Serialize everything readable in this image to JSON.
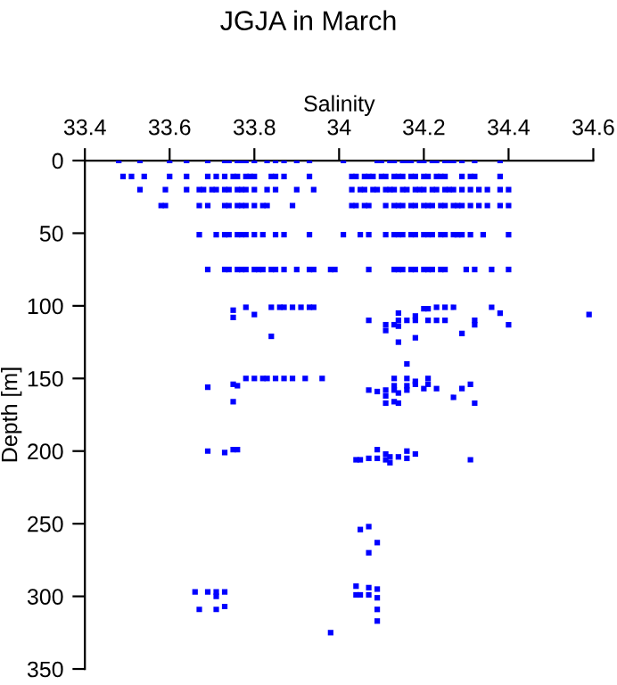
{
  "chart_data": {
    "type": "scatter",
    "title": "JGJA in March",
    "xlabel": "Salinity",
    "ylabel": "Depth [m]",
    "xlim": [
      33.4,
      34.6
    ],
    "xticks": [
      33.4,
      33.6,
      33.8,
      34,
      34.2,
      34.4,
      34.6
    ],
    "ylim": [
      350,
      0
    ],
    "yticks": [
      0,
      50,
      100,
      150,
      200,
      250,
      300,
      350
    ],
    "marker": "square",
    "grid": false,
    "series": [
      {
        "color": "#0000ff",
        "x": [
          33.48,
          33.53,
          33.6,
          33.64,
          33.69,
          33.73,
          33.74,
          33.76,
          33.77,
          33.78,
          33.8,
          33.83,
          33.85,
          33.87,
          33.9,
          33.93,
          34.01,
          34.09,
          34.1,
          34.12,
          34.13,
          34.15,
          34.16,
          34.17,
          34.19,
          34.2,
          34.22,
          34.23,
          34.25,
          34.26,
          34.27,
          34.29,
          34.32,
          34.38
        ],
        "values": [
          0,
          0,
          0,
          0,
          0,
          0,
          0,
          0,
          0,
          0,
          0,
          0,
          0,
          0,
          0,
          0,
          0,
          0,
          0,
          0,
          0,
          0,
          0,
          0,
          0,
          0,
          0,
          0,
          0,
          0,
          0,
          0,
          0,
          0
        ]
      },
      {
        "color": "#0000ff",
        "x": [
          33.49,
          33.51,
          33.54,
          33.6,
          33.64,
          33.69,
          33.71,
          33.73,
          33.75,
          33.76,
          33.78,
          33.79,
          33.8,
          33.84,
          33.85,
          33.87,
          33.93,
          34.03,
          34.04,
          34.06,
          34.07,
          34.08,
          34.1,
          34.11,
          34.13,
          34.14,
          34.15,
          34.17,
          34.18,
          34.2,
          34.21,
          34.23,
          34.24,
          34.25,
          34.29,
          34.31,
          34.32,
          34.38
        ],
        "values": [
          11,
          11,
          11,
          11,
          11,
          11,
          11,
          11,
          11,
          11,
          11,
          11,
          11,
          11,
          11,
          11,
          11,
          11,
          11,
          11,
          11,
          11,
          11,
          11,
          11,
          11,
          11,
          11,
          11,
          11,
          11,
          11,
          11,
          11,
          11,
          11,
          11,
          11
        ]
      },
      {
        "color": "#0000ff",
        "x": [
          33.53,
          33.59,
          33.64,
          33.67,
          33.68,
          33.7,
          33.71,
          33.73,
          33.74,
          33.76,
          33.77,
          33.78,
          33.8,
          33.83,
          33.85,
          33.9,
          33.94,
          34.03,
          34.05,
          34.06,
          34.08,
          34.09,
          34.11,
          34.12,
          34.13,
          34.15,
          34.16,
          34.18,
          34.19,
          34.2,
          34.22,
          34.23,
          34.25,
          34.26,
          34.27,
          34.29,
          34.31,
          34.33,
          34.35,
          34.38,
          34.4
        ],
        "values": [
          20,
          20,
          20,
          20,
          20,
          20,
          20,
          20,
          20,
          20,
          20,
          20,
          20,
          20,
          20,
          20,
          20,
          20,
          20,
          20,
          20,
          20,
          20,
          20,
          20,
          20,
          20,
          20,
          20,
          20,
          20,
          20,
          20,
          20,
          20,
          20,
          20,
          20,
          20,
          20,
          20
        ]
      },
      {
        "color": "#0000ff",
        "x": [
          33.58,
          33.59,
          33.67,
          33.69,
          33.73,
          33.74,
          33.76,
          33.77,
          33.78,
          33.8,
          33.82,
          33.83,
          33.89,
          34.03,
          34.04,
          34.06,
          34.07,
          34.11,
          34.13,
          34.14,
          34.15,
          34.17,
          34.18,
          34.2,
          34.21,
          34.22,
          34.24,
          34.25,
          34.27,
          34.28,
          34.29,
          34.31,
          34.33,
          34.35,
          34.38,
          34.4
        ],
        "values": [
          31,
          31,
          31,
          31,
          31,
          31,
          31,
          31,
          31,
          31,
          31,
          31,
          31,
          31,
          31,
          31,
          31,
          31,
          31,
          31,
          31,
          31,
          31,
          31,
          31,
          31,
          31,
          31,
          31,
          31,
          31,
          31,
          31,
          31,
          31,
          31
        ]
      },
      {
        "color": "#0000ff",
        "x": [
          33.67,
          33.71,
          33.73,
          33.74,
          33.76,
          33.77,
          33.78,
          33.8,
          33.82,
          33.85,
          33.87,
          33.93,
          34.01,
          34.05,
          34.07,
          34.11,
          34.13,
          34.14,
          34.15,
          34.17,
          34.18,
          34.2,
          34.21,
          34.22,
          34.24,
          34.25,
          34.27,
          34.28,
          34.29,
          34.31,
          34.34,
          34.4
        ],
        "values": [
          51,
          51,
          51,
          51,
          51,
          51,
          51,
          51,
          51,
          51,
          51,
          51,
          51,
          51,
          51,
          51,
          51,
          51,
          51,
          51,
          51,
          51,
          51,
          51,
          51,
          51,
          51,
          51,
          51,
          51,
          51,
          51
        ]
      },
      {
        "color": "#0000ff",
        "x": [
          33.69,
          33.73,
          33.74,
          33.76,
          33.77,
          33.78,
          33.8,
          33.81,
          33.82,
          33.84,
          33.85,
          33.87,
          33.9,
          33.93,
          33.94,
          33.98,
          33.99,
          34.07,
          34.13,
          34.14,
          34.15,
          34.17,
          34.18,
          34.2,
          34.21,
          34.22,
          34.24,
          34.25,
          34.3,
          34.32,
          34.36,
          34.4
        ],
        "values": [
          75,
          75,
          75,
          75,
          75,
          75,
          75,
          75,
          75,
          75,
          75,
          75,
          75,
          75,
          75,
          75,
          75,
          75,
          75,
          75,
          75,
          75,
          75,
          75,
          75,
          75,
          75,
          75,
          75,
          75,
          75,
          75
        ]
      },
      {
        "color": "#0000ff",
        "x": [
          33.75,
          33.75,
          33.78,
          33.8,
          33.84,
          33.84,
          33.86,
          33.87,
          33.89,
          33.91,
          33.93,
          33.94,
          34.07,
          34.11,
          34.11,
          34.13,
          34.14,
          34.14,
          34.14,
          34.16,
          34.18,
          34.18,
          34.2,
          34.21,
          34.21,
          34.23,
          34.25,
          34.27,
          34.23,
          34.25,
          34.29,
          34.32,
          34.32,
          34.36,
          34.38,
          34.4,
          34.59,
          34.14,
          34.18
        ],
        "values": [
          103,
          108,
          101,
          106,
          121,
          101,
          101,
          101,
          101,
          101,
          101,
          101,
          110,
          113,
          117,
          113,
          110,
          105,
          114,
          110,
          107,
          110,
          102,
          102,
          110,
          101,
          101,
          101,
          110,
          110,
          119,
          110,
          113,
          101,
          105,
          113,
          106,
          125,
          122
        ]
      },
      {
        "color": "#0000ff",
        "x": [
          33.78,
          33.8,
          33.82,
          33.83,
          33.85,
          33.87,
          33.89,
          33.92,
          33.96,
          33.69,
          33.75,
          33.76,
          33.75,
          34.16,
          34.13,
          34.16,
          34.21,
          34.07,
          34.09,
          34.11,
          34.11,
          34.13,
          34.13,
          34.14,
          34.16,
          34.16,
          34.18,
          34.18,
          34.2,
          34.21,
          34.23,
          34.11,
          34.13,
          34.14,
          34.27,
          34.29,
          34.31,
          34.32
        ],
        "values": [
          150,
          150,
          150,
          150,
          150,
          150,
          150,
          150,
          150,
          156,
          154,
          155,
          166,
          140,
          150,
          150,
          150,
          158,
          159,
          158,
          162,
          155,
          158,
          160,
          155,
          158,
          152,
          154,
          157,
          154,
          157,
          167,
          166,
          167,
          163,
          157,
          154,
          167
        ]
      },
      {
        "color": "#0000ff",
        "x": [
          33.69,
          33.75,
          33.76,
          33.73,
          34.04,
          34.05,
          34.07,
          34.09,
          34.09,
          34.11,
          34.11,
          34.12,
          34.12,
          34.14,
          34.16,
          34.16,
          34.18,
          34.31
        ],
        "values": [
          200,
          199,
          199,
          201,
          206,
          206,
          205,
          199,
          205,
          202,
          206,
          204,
          208,
          204,
          200,
          205,
          202,
          206
        ]
      },
      {
        "color": "#0000ff",
        "x": [
          34.05,
          34.07,
          34.09,
          34.07,
          33.66,
          33.69,
          33.71,
          33.71,
          33.73,
          33.73,
          33.67,
          33.71,
          34.04,
          34.04,
          34.05,
          34.07,
          34.07,
          34.09,
          34.09,
          34.09,
          34.09,
          33.98
        ],
        "values": [
          254,
          252,
          263,
          270,
          297,
          297,
          297,
          300,
          297,
          307,
          309,
          309,
          293,
          299,
          299,
          294,
          299,
          295,
          301,
          309,
          317,
          325
        ]
      }
    ]
  }
}
